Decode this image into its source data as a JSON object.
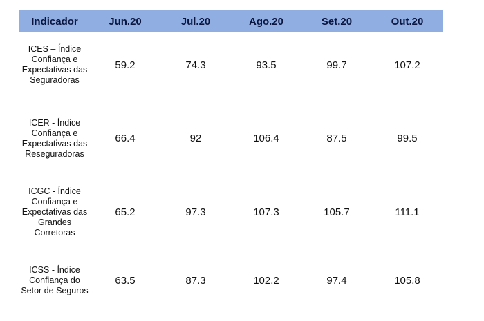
{
  "table": {
    "headers": [
      "Indicador",
      "Jun.20",
      "Jul.20",
      "Ago.20",
      "Set.20",
      "Out.20"
    ],
    "rows": [
      {
        "label_lines": [
          "ICES – Índice",
          "Confiança e",
          "Expectativas das",
          "Seguradoras"
        ],
        "values": [
          "59.2",
          "74.3",
          "93.5",
          "99.7",
          "107.2"
        ]
      },
      {
        "label_lines": [
          "ICER - Índice",
          "Confiança e",
          "Expectativas das",
          "Reseguradoras"
        ],
        "values": [
          "66.4",
          "92",
          "106.4",
          "87.5",
          "99.5"
        ]
      },
      {
        "label_lines": [
          "ICGC - Índice",
          "Confiança e",
          "Expectativas das",
          "Grandes",
          "Corretoras"
        ],
        "values": [
          "65.2",
          "97.3",
          "107.3",
          "105.7",
          "111.1"
        ]
      },
      {
        "label_lines": [
          "ICSS - Índice",
          "Confiança do",
          "Setor de Seguros"
        ],
        "values": [
          "63.5",
          "87.3",
          "102.2",
          "97.4",
          "105.8"
        ]
      }
    ]
  }
}
